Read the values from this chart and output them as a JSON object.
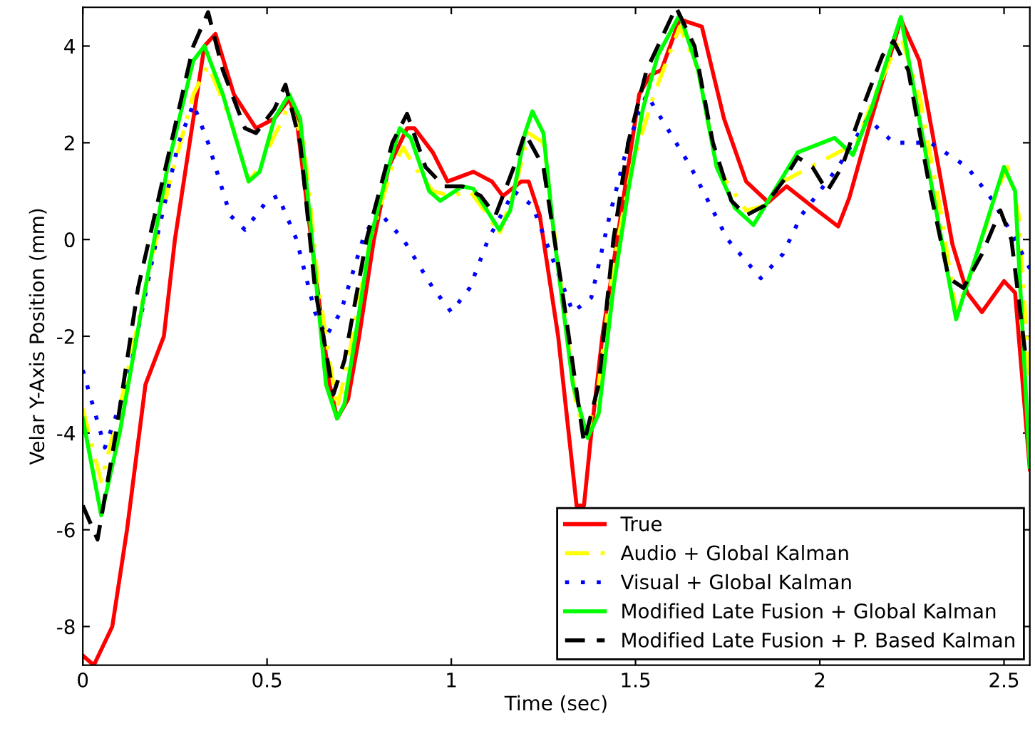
{
  "chart_data": {
    "type": "line",
    "xlabel": "Time (sec)",
    "ylabel": "Velar Y-Axis Position (mm)",
    "xlim": [
      0,
      2.57
    ],
    "ylim": [
      -8.8,
      4.8
    ],
    "xticks": [
      0,
      0.5,
      1,
      1.5,
      2,
      2.5
    ],
    "yticks": [
      -8,
      -6,
      -4,
      -2,
      0,
      2,
      4
    ],
    "grid": false,
    "legend": "bottom right",
    "series": [
      {
        "name": "True",
        "color": "#ff0000",
        "line_style": "solid",
        "x": [
          0,
          0.03,
          0.08,
          0.12,
          0.17,
          0.22,
          0.25,
          0.29,
          0.33,
          0.36,
          0.41,
          0.47,
          0.52,
          0.56,
          0.58,
          0.62,
          0.67,
          0.69,
          0.72,
          0.75,
          0.79,
          0.83,
          0.88,
          0.9,
          0.95,
          0.99,
          1.06,
          1.11,
          1.14,
          1.19,
          1.21,
          1.24,
          1.29,
          1.34,
          1.36,
          1.38,
          1.41,
          1.45,
          1.49,
          1.51,
          1.54,
          1.57,
          1.62,
          1.68,
          1.74,
          1.8,
          1.86,
          1.91,
          1.99,
          2.05,
          2.08,
          2.14,
          2.22,
          2.27,
          2.36,
          2.4,
          2.44,
          2.5,
          2.53,
          2.57
        ],
        "values": [
          -8.6,
          -8.8,
          -8,
          -6,
          -3,
          -2,
          0,
          2,
          4,
          4.25,
          3,
          2.3,
          2.5,
          2.9,
          2.5,
          0,
          -3,
          -3.7,
          -3.3,
          -2,
          0,
          1.5,
          2.3,
          2.3,
          1.8,
          1.2,
          1.4,
          1.2,
          0.9,
          1.2,
          1.2,
          0.5,
          -2,
          -5.5,
          -5.5,
          -4,
          -2,
          0,
          2,
          3,
          3.4,
          3.5,
          4.55,
          4.4,
          2.5,
          1.2,
          0.77,
          1.1,
          0.62,
          0.27,
          0.86,
          2.5,
          4.55,
          3.7,
          -0.1,
          -1.1,
          -1.5,
          -0.86,
          -1.1,
          -4.75
        ]
      },
      {
        "name": "Audio + Global Kalman",
        "color": "#ffff00",
        "line_style": "dashdot",
        "x": [
          0,
          0.05,
          0.1,
          0.17,
          0.23,
          0.3,
          0.34,
          0.4,
          0.45,
          0.48,
          0.53,
          0.56,
          0.6,
          0.64,
          0.68,
          0.69,
          0.72,
          0.78,
          0.84,
          0.87,
          0.9,
          0.95,
          1.0,
          1.05,
          1.1,
          1.13,
          1.17,
          1.21,
          1.25,
          1.29,
          1.34,
          1.37,
          1.4,
          1.44,
          1.49,
          1.55,
          1.62,
          1.67,
          1.72,
          1.8,
          1.85,
          1.9,
          1.95,
          2.0,
          2.05,
          2.1,
          2.15,
          2.22,
          2.27,
          2.33,
          2.37,
          2.42,
          2.48,
          2.51,
          2.54,
          2.57
        ],
        "values": [
          -3.5,
          -5,
          -3.5,
          -1,
          1,
          3,
          3.6,
          2.5,
          1.2,
          1.5,
          2.3,
          2.8,
          2,
          -1,
          -3,
          -3.5,
          -2.5,
          0,
          1.5,
          1.9,
          1.5,
          1,
          0.9,
          1,
          0.5,
          0.1,
          1,
          2.2,
          2,
          -0.5,
          -3.5,
          -4,
          -3,
          -0.5,
          1.5,
          3,
          4.4,
          3.5,
          1.5,
          0.6,
          0.7,
          1.2,
          1.4,
          1.6,
          1.8,
          2,
          3,
          4.2,
          3,
          0.5,
          -1.5,
          -0.5,
          1,
          1.5,
          0.5,
          -3
        ]
      },
      {
        "name": "Visual + Global Kalman",
        "color": "#0000ff",
        "line_style": "dotted",
        "x": [
          0,
          0.06,
          0.12,
          0.2,
          0.26,
          0.3,
          0.34,
          0.4,
          0.44,
          0.5,
          0.53,
          0.58,
          0.63,
          0.66,
          0.7,
          0.76,
          0.8,
          0.87,
          0.95,
          1.0,
          1.05,
          1.1,
          1.17,
          1.22,
          1.28,
          1.33,
          1.38,
          1.43,
          1.48,
          1.53,
          1.57,
          1.65,
          1.75,
          1.84,
          1.9,
          1.95,
          2.05,
          2.13,
          2.2,
          2.3,
          2.4,
          2.47,
          2.53,
          2.57
        ],
        "values": [
          -2.7,
          -4.3,
          -3,
          0,
          2,
          2.8,
          2,
          0.5,
          0.2,
          0.8,
          0.9,
          0,
          -1.5,
          -2,
          -1.5,
          0,
          0.6,
          0,
          -1,
          -1.5,
          -1,
          0,
          1,
          0.7,
          -0.5,
          -1.5,
          -1.2,
          0.5,
          2,
          3,
          2.5,
          1.5,
          0,
          -0.8,
          -0.3,
          0.5,
          1.5,
          2.5,
          2,
          2,
          1.5,
          0.8,
          0,
          -0.6
        ]
      },
      {
        "name": "Modified Late Fusion + Global Kalman",
        "color": "#00ff00",
        "line_style": "solid",
        "x": [
          0,
          0.05,
          0.1,
          0.17,
          0.23,
          0.3,
          0.33,
          0.38,
          0.45,
          0.48,
          0.52,
          0.56,
          0.59,
          0.66,
          0.69,
          0.71,
          0.74,
          0.78,
          0.83,
          0.86,
          0.89,
          0.94,
          0.97,
          1.03,
          1.06,
          1.13,
          1.16,
          1.2,
          1.22,
          1.25,
          1.28,
          1.33,
          1.37,
          1.4,
          1.44,
          1.48,
          1.52,
          1.56,
          1.62,
          1.67,
          1.72,
          1.77,
          1.82,
          1.94,
          2.04,
          2.09,
          2.14,
          2.22,
          2.27,
          2.37,
          2.5,
          2.53,
          2.57
        ],
        "values": [
          -3.7,
          -5.7,
          -4,
          -1,
          1.5,
          3.7,
          4,
          3,
          1.2,
          1.4,
          2.5,
          3,
          2.5,
          -3,
          -3.7,
          -3.4,
          -2,
          0,
          1.5,
          2.3,
          2.1,
          1,
          0.8,
          1.1,
          1.05,
          0.2,
          0.6,
          2.2,
          2.65,
          2.2,
          0,
          -3,
          -4.1,
          -3.6,
          -1,
          1,
          2.7,
          3.8,
          4.65,
          3.5,
          1.5,
          0.65,
          0.3,
          1.8,
          2.1,
          1.75,
          2.7,
          4.6,
          2.5,
          -1.65,
          1.5,
          1,
          -4.7
        ]
      },
      {
        "name": "Modified Late Fusion + P. Based Kalman",
        "color": "#000000",
        "line_style": "dashed",
        "x": [
          0,
          0.04,
          0.09,
          0.15,
          0.24,
          0.3,
          0.34,
          0.38,
          0.44,
          0.47,
          0.52,
          0.55,
          0.59,
          0.63,
          0.68,
          0.71,
          0.77,
          0.84,
          0.88,
          0.93,
          0.98,
          1.03,
          1.08,
          1.12,
          1.17,
          1.2,
          1.25,
          1.3,
          1.36,
          1.4,
          1.44,
          1.48,
          1.53,
          1.61,
          1.66,
          1.71,
          1.76,
          1.8,
          1.85,
          1.9,
          1.94,
          1.98,
          2.02,
          2.06,
          2.12,
          2.17,
          2.2,
          2.24,
          2.3,
          2.35,
          2.39,
          2.44,
          2.49,
          2.52,
          2.56
        ],
        "values": [
          -5.5,
          -6.2,
          -4,
          -1,
          2,
          4,
          4.7,
          3.5,
          2.3,
          2.2,
          2.7,
          3.2,
          2,
          -1,
          -3.2,
          -2.5,
          0,
          2,
          2.6,
          1.5,
          1.1,
          1.1,
          0.9,
          0.5,
          1.5,
          2.2,
          1.5,
          -1,
          -4.2,
          -3,
          0,
          2,
          3.5,
          4.8,
          4,
          2,
          0.8,
          0.5,
          0.7,
          1.2,
          1.7,
          1.5,
          1,
          1.5,
          2.8,
          3.8,
          4.1,
          3.5,
          1,
          -0.8,
          -1,
          -0.3,
          0.6,
          0,
          -2.5
        ]
      }
    ]
  }
}
